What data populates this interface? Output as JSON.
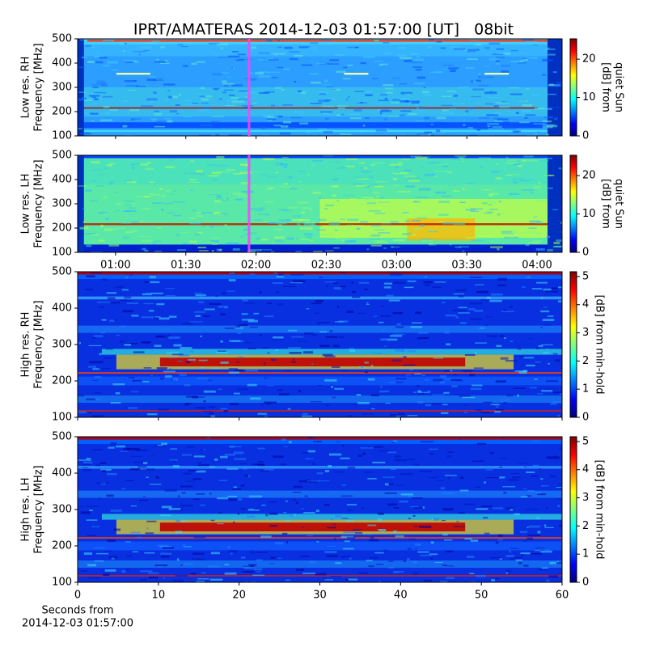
{
  "chart_data": [
    {
      "type": "heatmap",
      "title": "IPRT/AMATERAS 2014-12-03 01:57:00 [UT]   08bit",
      "ylabel": [
        "Low res. RH",
        "Frequency [MHz]"
      ],
      "ylim": [
        100,
        500
      ],
      "yticks": [
        100,
        200,
        300,
        400,
        500
      ],
      "colorbar": {
        "label": [
          "[dB] from",
          "quiet Sun"
        ],
        "lim": [
          0,
          25.3
        ],
        "ticks": [
          0,
          10,
          20
        ]
      }
    },
    {
      "type": "heatmap",
      "ylabel": [
        "Low res. LH",
        "Frequency [MHz]"
      ],
      "ylim": [
        100,
        500
      ],
      "yticks": [
        100,
        200,
        300,
        400,
        500
      ],
      "xlim": [
        43.8,
        250.7
      ],
      "xticks": [
        {
          "value": 60,
          "label": "01:00"
        },
        {
          "value": 90,
          "label": "01:30"
        },
        {
          "value": 120,
          "label": "02:00"
        },
        {
          "value": 150,
          "label": "02:30"
        },
        {
          "value": 180,
          "label": "03:00"
        },
        {
          "value": 210,
          "label": "03:30"
        },
        {
          "value": 240,
          "label": "04:00"
        }
      ],
      "time_marker": 117,
      "colorbar": {
        "label": [
          "[dB] from",
          "quiet Sun"
        ],
        "lim": [
          0,
          25.3
        ],
        "ticks": [
          0,
          10,
          20
        ]
      }
    },
    {
      "type": "heatmap",
      "ylabel": [
        "High res. RH",
        "Frequency [MHz]"
      ],
      "ylim": [
        100,
        500
      ],
      "yticks": [
        100,
        200,
        300,
        400,
        500
      ],
      "colorbar": {
        "label": [
          "[dB] from min-hold"
        ],
        "lim": [
          0,
          5.17
        ],
        "ticks": [
          0,
          1,
          2,
          3,
          4,
          5
        ]
      }
    },
    {
      "type": "heatmap",
      "ylabel": [
        "High res. LH",
        "Frequency [MHz]"
      ],
      "ylim": [
        100,
        500
      ],
      "yticks": [
        100,
        200,
        300,
        400,
        500
      ],
      "xlim": [
        0,
        60
      ],
      "xticks": [
        0,
        10,
        20,
        30,
        40,
        50,
        60
      ],
      "xlabel": [
        "Seconds from",
        "2014-12-03 01:57:00"
      ],
      "colorbar": {
        "label": [
          "[dB] from min-hold"
        ],
        "lim": [
          0,
          5.17
        ],
        "ticks": [
          0,
          1,
          2,
          3,
          4,
          5
        ]
      }
    }
  ]
}
